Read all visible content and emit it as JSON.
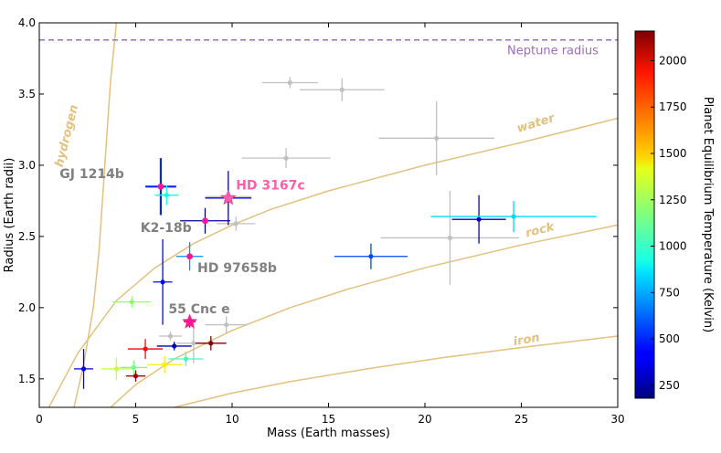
{
  "chart_data": {
    "type": "scatter",
    "xlabel": "Mass (Earth masses)",
    "ylabel": "Radius (Earth radii)",
    "xlim": [
      0,
      30
    ],
    "ylim": [
      1.3,
      4.0
    ],
    "x_ticks": [
      0,
      5,
      10,
      15,
      20,
      25,
      30
    ],
    "y_ticks": [
      1.5,
      2.0,
      2.5,
      3.0,
      3.5,
      4.0
    ],
    "x_tick_labels": [
      "0",
      "5",
      "10",
      "15",
      "20",
      "25",
      "30"
    ],
    "y_tick_labels": [
      "1.5",
      "2.0",
      "2.5",
      "3.0",
      "3.5",
      "4.0"
    ],
    "grid": false,
    "colorbar": {
      "label": "Planet Equilibrium Temperature (Kelvin)",
      "range": [
        180,
        2160
      ],
      "colormap": "jet",
      "ticks": [
        250,
        500,
        750,
        1000,
        1250,
        1500,
        1750,
        2000
      ],
      "tick_labels": [
        "250",
        "500",
        "750",
        "1000",
        "1250",
        "1500",
        "1750",
        "2000"
      ]
    },
    "reference_line": {
      "label": "Neptune radius",
      "y": 3.88,
      "color": "#9b6fb3"
    },
    "composition_curves": [
      {
        "name": "hydrogen",
        "color": "#e3c17e",
        "points": [
          [
            1.8,
            1.3
          ],
          [
            2.3,
            1.6
          ],
          [
            2.8,
            2.0
          ],
          [
            3.1,
            2.4
          ],
          [
            3.4,
            3.0
          ],
          [
            3.7,
            3.6
          ],
          [
            4.0,
            4.0
          ]
        ],
        "label_at": [
          1.6,
          3.2
        ],
        "label_angle": -76
      },
      {
        "name": "water",
        "color": "#e3c17e",
        "points": [
          [
            0.5,
            1.3
          ],
          [
            2.0,
            1.68
          ],
          [
            4.0,
            2.05
          ],
          [
            6.0,
            2.28
          ],
          [
            8.0,
            2.45
          ],
          [
            10.0,
            2.58
          ],
          [
            12.0,
            2.69
          ],
          [
            15.0,
            2.82
          ],
          [
            20.0,
            3.0
          ],
          [
            25.0,
            3.16
          ],
          [
            30.0,
            3.33
          ]
        ],
        "label_at": [
          25.8,
          3.27
        ],
        "label_angle": -17
      },
      {
        "name": "rock",
        "color": "#e3c17e",
        "points": [
          [
            3.7,
            1.3
          ],
          [
            5.0,
            1.46
          ],
          [
            7.0,
            1.64
          ],
          [
            10.0,
            1.84
          ],
          [
            13.0,
            2.0
          ],
          [
            16.0,
            2.13
          ],
          [
            20.0,
            2.28
          ],
          [
            25.0,
            2.44
          ],
          [
            30.0,
            2.58
          ]
        ],
        "label_at": [
          26.0,
          2.52
        ],
        "label_angle": -14
      },
      {
        "name": "iron",
        "color": "#e3c17e",
        "points": [
          [
            7.0,
            1.3
          ],
          [
            10.0,
            1.4
          ],
          [
            13.0,
            1.48
          ],
          [
            17.0,
            1.57
          ],
          [
            21.0,
            1.65
          ],
          [
            25.0,
            1.72
          ],
          [
            30.0,
            1.8
          ]
        ],
        "label_at": [
          25.3,
          1.75
        ],
        "label_angle": -10
      }
    ],
    "gray_points": [
      {
        "x": 13.0,
        "y": 3.58,
        "xerr": 1.45,
        "yerr": 0.04
      },
      {
        "x": 15.7,
        "y": 3.53,
        "xerr": 2.2,
        "yerr": 0.08
      },
      {
        "x": 20.6,
        "y": 3.19,
        "xerr": 3.0,
        "yerr": 0.26
      },
      {
        "x": 12.8,
        "y": 3.05,
        "xerr": 2.3,
        "yerr": 0.07
      },
      {
        "x": 9.8,
        "y": 2.78,
        "xerr": 1.2,
        "yerr": 0.12
      },
      {
        "x": 10.2,
        "y": 2.59,
        "xerr": 1.0,
        "yerr": 0.05
      },
      {
        "x": 21.3,
        "y": 2.49,
        "xerr": 3.6,
        "yerr": 0.33
      },
      {
        "x": 9.7,
        "y": 1.88,
        "xerr": 1.1,
        "yerr": 0.06
      },
      {
        "x": 6.8,
        "y": 1.8,
        "xerr": 0.6,
        "yerr": 0.03
      },
      {
        "x": 8.0,
        "y": 1.75,
        "xerr": 0.9,
        "yerr": 0.14
      }
    ],
    "temperature_points": [
      {
        "x": 6.3,
        "y": 2.85,
        "xerr": 0.8,
        "yerr": 0.2,
        "temp": 500,
        "highlight": true
      },
      {
        "x": 6.6,
        "y": 2.79,
        "xerr": 0.6,
        "yerr": 0.07,
        "temp": 950
      },
      {
        "x": 9.8,
        "y": 2.77,
        "xerr": 1.2,
        "yerr": 0.19,
        "temp": 390
      },
      {
        "x": 8.6,
        "y": 2.61,
        "xerr": 1.3,
        "yerr": 0.09,
        "temp": 250
      },
      {
        "x": 6.4,
        "y": 2.18,
        "xerr": 0.5,
        "yerr": 0.3,
        "temp": 450
      },
      {
        "x": 7.8,
        "y": 2.36,
        "xerr": 0.7,
        "yerr": 0.1,
        "temp": 700
      },
      {
        "x": 22.8,
        "y": 2.62,
        "xerr": 1.4,
        "yerr": 0.17,
        "temp": 330
      },
      {
        "x": 24.6,
        "y": 2.64,
        "xerr": 4.3,
        "yerr": 0.11,
        "temp": 850
      },
      {
        "x": 17.2,
        "y": 2.36,
        "xerr": 1.9,
        "yerr": 0.09,
        "temp": 560
      },
      {
        "x": 4.8,
        "y": 2.04,
        "xerr": 1.0,
        "yerr": 0.04,
        "temp": 1200
      },
      {
        "x": 7.8,
        "y": 1.9,
        "xerr": 0.3,
        "yerr": 0.04,
        "temp": 2050
      },
      {
        "x": 5.5,
        "y": 1.71,
        "xerr": 0.9,
        "yerr": 0.07,
        "temp": 1900
      },
      {
        "x": 7.0,
        "y": 1.73,
        "xerr": 0.9,
        "yerr": 0.03,
        "temp": 270
      },
      {
        "x": 8.9,
        "y": 1.75,
        "xerr": 0.8,
        "yerr": 0.05,
        "temp": 2150
      },
      {
        "x": 2.3,
        "y": 1.57,
        "xerr": 0.5,
        "yerr": 0.14,
        "temp": 380
      },
      {
        "x": 4.0,
        "y": 1.57,
        "xerr": 0.8,
        "yerr": 0.08,
        "temp": 1300
      },
      {
        "x": 4.9,
        "y": 1.58,
        "xerr": 0.7,
        "yerr": 0.05,
        "temp": 1150
      },
      {
        "x": 6.5,
        "y": 1.6,
        "xerr": 0.9,
        "yerr": 0.06,
        "temp": 1450
      },
      {
        "x": 7.6,
        "y": 1.64,
        "xerr": 0.9,
        "yerr": 0.05,
        "temp": 1050
      },
      {
        "x": 5.0,
        "y": 1.52,
        "xerr": 0.5,
        "yerr": 0.04,
        "temp": 2100
      }
    ],
    "planet_labels": [
      {
        "text": "GJ 1214b",
        "x": 4.4,
        "y": 2.91,
        "anchor": "end",
        "color": "#808080"
      },
      {
        "text": "HD 3167c",
        "x": 10.2,
        "y": 2.83,
        "anchor": "start",
        "color": "#ff5faa"
      },
      {
        "text": "K2-18b",
        "x": 7.9,
        "y": 2.53,
        "anchor": "end",
        "color": "#808080"
      },
      {
        "text": "HD 97658b",
        "x": 8.2,
        "y": 2.25,
        "anchor": "start",
        "color": "#808080"
      },
      {
        "text": "55 Cnc e",
        "x": 6.7,
        "y": 1.96,
        "anchor": "start",
        "color": "#808080"
      }
    ],
    "highlight_points": [
      {
        "name": "hd3167c-star",
        "x": 9.8,
        "y": 2.77,
        "shape": "star",
        "color": "#ff5faa"
      },
      {
        "name": "cnc55e-star",
        "x": 7.8,
        "y": 1.9,
        "shape": "star",
        "color": "#ff1493"
      },
      {
        "name": "gj1214b-dot",
        "x": 6.3,
        "y": 2.85,
        "shape": "dot",
        "color": "#ff1493"
      },
      {
        "name": "k218b-dot",
        "x": 8.6,
        "y": 2.61,
        "shape": "dot",
        "color": "#ff1493"
      },
      {
        "name": "hd97658b-dot",
        "x": 7.8,
        "y": 2.36,
        "shape": "dot",
        "color": "#ff1493"
      }
    ]
  }
}
